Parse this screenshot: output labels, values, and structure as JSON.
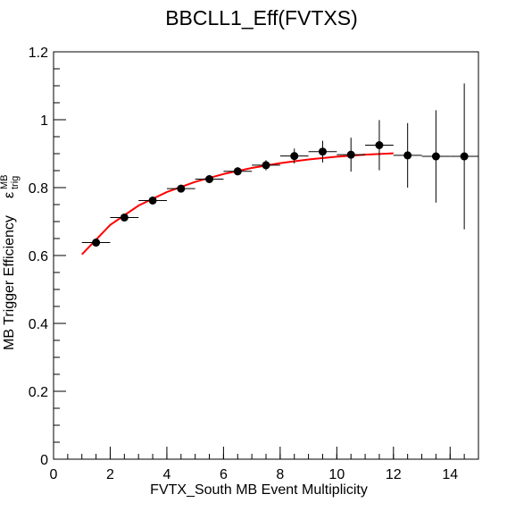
{
  "chart_data": {
    "type": "scatter",
    "title": "BBCLL1_Eff(FVTXS)",
    "xlabel": "FVTX_South MB Event Multiplicity",
    "ylabel": "MB Trigger Efficiency",
    "ylabel_symbol": "ε",
    "ylabel_superscript": "MB",
    "ylabel_subscript": "trig",
    "xlim": [
      0,
      15
    ],
    "ylim": [
      0,
      1.2
    ],
    "x_ticks": [
      0,
      2,
      4,
      6,
      8,
      10,
      12,
      14
    ],
    "x_tick_labels": [
      "0",
      "2",
      "4",
      "6",
      "8",
      "10",
      "12",
      "14"
    ],
    "y_ticks": [
      0,
      0.2,
      0.4,
      0.6,
      0.8,
      1.0,
      1.2
    ],
    "y_tick_labels": [
      "0",
      "0.2",
      "0.4",
      "0.6",
      "0.8",
      "1",
      "1.2"
    ],
    "grid": false,
    "legend": "none",
    "series": [
      {
        "type": "scatter",
        "color": "#000000",
        "x": [
          1.5,
          2.5,
          3.5,
          4.5,
          5.5,
          6.5,
          7.5,
          8.5,
          9.5,
          10.5,
          11.5,
          12.5,
          13.5,
          14.5
        ],
        "x_err": [
          0.5,
          0.5,
          0.5,
          0.5,
          0.5,
          0.5,
          0.5,
          0.5,
          0.5,
          0.5,
          0.5,
          0.5,
          0.5,
          0.5
        ],
        "y": [
          0.638,
          0.712,
          0.762,
          0.797,
          0.825,
          0.848,
          0.866,
          0.893,
          0.906,
          0.897,
          0.925,
          0.895,
          0.892,
          0.892
        ],
        "y_err": [
          0.012,
          0.01,
          0.01,
          0.01,
          0.012,
          0.012,
          0.015,
          0.022,
          0.032,
          0.05,
          0.074,
          0.095,
          0.136,
          0.215
        ]
      },
      {
        "type": "line",
        "color": "#ff0000",
        "x": [
          1.0,
          2.0,
          3.0,
          4.0,
          5.0,
          6.0,
          7.0,
          8.0,
          9.0,
          10.0,
          11.0,
          12.0
        ],
        "y": [
          0.603,
          0.69,
          0.747,
          0.787,
          0.817,
          0.84,
          0.858,
          0.872,
          0.883,
          0.891,
          0.897,
          0.901
        ]
      }
    ]
  }
}
